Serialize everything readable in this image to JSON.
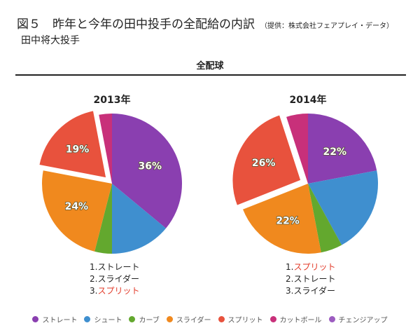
{
  "title": "図５　昨年と今年の田中投手の全配給の内訳",
  "source": "（提供：株式会社フェアプレイ・データ）",
  "subtitle": "田中将大投手",
  "section": "全配球",
  "chart_data": [
    {
      "type": "pie",
      "title": "2013年",
      "categories": [
        "ストレート",
        "シュート",
        "カーブ",
        "スライダー",
        "スプリット",
        "カットボール",
        "チェンジアップ"
      ],
      "values": [
        36,
        14,
        4,
        24,
        19,
        3,
        0
      ],
      "labels": {
        "0": "36%",
        "3": "24%",
        "4": "19%"
      },
      "exploded": "スプリット",
      "ranking": [
        "1.ストレート",
        "2.スライダー",
        "3.スプリット"
      ],
      "ranking_highlight": [
        2
      ]
    },
    {
      "type": "pie",
      "title": "2014年",
      "categories": [
        "ストレート",
        "シュート",
        "カーブ",
        "スライダー",
        "スプリット",
        "カットボール",
        "チェンジアップ"
      ],
      "values": [
        22,
        20,
        5,
        22,
        26,
        5,
        0
      ],
      "labels": {
        "0": "22%",
        "3": "22%",
        "4": "26%"
      },
      "exploded": "スプリット",
      "ranking": [
        "1.スプリット",
        "2.ストレート",
        "3.スライダー"
      ],
      "ranking_highlight": [
        0
      ]
    }
  ],
  "legend": [
    {
      "label": "ストレート",
      "color": "#8a3fb0"
    },
    {
      "label": "シュート",
      "color": "#3f8fcf"
    },
    {
      "label": "カーブ",
      "color": "#63a82e"
    },
    {
      "label": "スライダー",
      "color": "#f0891e"
    },
    {
      "label": "スプリット",
      "color": "#e8523d"
    },
    {
      "label": "カットボール",
      "color": "#c8307a"
    },
    {
      "label": "チェンジアップ",
      "color": "#9c5cc0"
    }
  ]
}
